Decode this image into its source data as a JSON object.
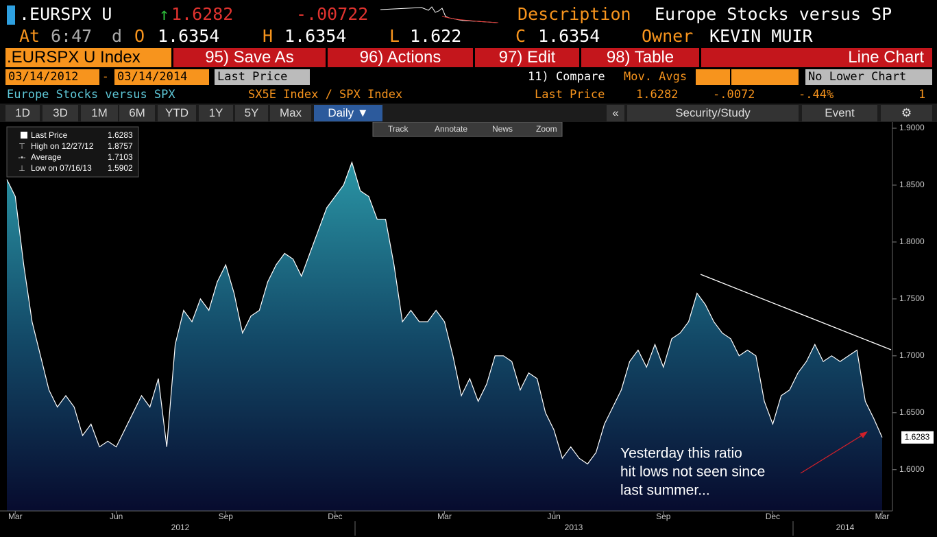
{
  "header": {
    "ticker": ".EURSPX U",
    "last": "1.6282",
    "change": "-.00722",
    "description_label": "Description",
    "description": "Europe Stocks versus SP",
    "at_label": "At",
    "time": "6:47",
    "d": "d",
    "open_label": "O",
    "open": "1.6354",
    "high_label": "H",
    "high": "1.6354",
    "low_label": "L",
    "low": "1.622",
    "close_label": "C",
    "close": "1.6354",
    "owner_label": "Owner",
    "owner": "KEVIN MUIR"
  },
  "menu": {
    "security": ".EURSPX U Index",
    "buttons": [
      "95) Save As",
      "96) Actions",
      "97) Edit",
      "98) Table"
    ],
    "chart_type": "Line Chart"
  },
  "settings": {
    "start_date": "03/14/2012",
    "separator": "-",
    "end_date": "03/14/2014",
    "field": "Last Price",
    "compare": "11) Compare",
    "mov_avgs": "Mov. Avgs",
    "lower_chart": "No Lower Chart"
  },
  "info": {
    "name": "Europe Stocks versus SPX",
    "formula": "SX5E Index / SPX Index",
    "field": "Last Price",
    "value": "1.6282",
    "change": "-.0072",
    "pct_change": "-.44%",
    "count": "1"
  },
  "tabs": {
    "periods": [
      "1D",
      "3D",
      "1M",
      "6M",
      "YTD",
      "1Y",
      "5Y",
      "Max"
    ],
    "frequency": "Daily ▼",
    "collapse": "«",
    "study": "Security/Study",
    "event": "Event"
  },
  "toolbar": [
    "Track",
    "Annotate",
    "News",
    "Zoom"
  ],
  "chart_data": {
    "type": "line",
    "categories": [
      null,
      "Mar",
      null,
      null,
      null,
      null,
      null,
      null,
      null,
      null,
      null,
      null,
      null,
      "Jun",
      null,
      null,
      null,
      null,
      null,
      null,
      null,
      null,
      null,
      null,
      null,
      null,
      "Sep",
      null,
      null,
      null,
      null,
      null,
      null,
      null,
      null,
      null,
      null,
      null,
      null,
      "Dec",
      null,
      null,
      null,
      null,
      null,
      null,
      null,
      null,
      null,
      null,
      null,
      null,
      "Mar",
      null,
      null,
      null,
      null,
      null,
      null,
      null,
      null,
      null,
      null,
      null,
      null,
      "Jun",
      null,
      null,
      null,
      null,
      null,
      null,
      null,
      null,
      null,
      null,
      null,
      null,
      "Sep",
      null,
      null,
      null,
      null,
      null,
      null,
      null,
      null,
      null,
      null,
      null,
      null,
      "Dec",
      null,
      null,
      null,
      null,
      null,
      null,
      null,
      null,
      null,
      null,
      null,
      null,
      "Mar"
    ],
    "x_groups": [
      "2012",
      "2013",
      "2014"
    ],
    "series": [
      {
        "name": "Last Price",
        "color": "#ffffff",
        "values": [
          1.855,
          1.84,
          1.78,
          1.73,
          1.7,
          1.67,
          1.655,
          1.665,
          1.655,
          1.63,
          1.64,
          1.62,
          1.625,
          1.62,
          1.635,
          1.65,
          1.665,
          1.655,
          1.68,
          1.62,
          1.71,
          1.74,
          1.73,
          1.75,
          1.74,
          1.765,
          1.78,
          1.755,
          1.72,
          1.735,
          1.74,
          1.765,
          1.78,
          1.79,
          1.785,
          1.77,
          1.79,
          1.81,
          1.83,
          1.84,
          1.85,
          1.87,
          1.845,
          1.84,
          1.82,
          1.82,
          1.78,
          1.73,
          1.74,
          1.73,
          1.73,
          1.74,
          1.73,
          1.7,
          1.665,
          1.68,
          1.66,
          1.675,
          1.7,
          1.7,
          1.695,
          1.67,
          1.685,
          1.68,
          1.65,
          1.635,
          1.61,
          1.62,
          1.61,
          1.605,
          1.615,
          1.64,
          1.655,
          1.67,
          1.695,
          1.705,
          1.69,
          1.71,
          1.69,
          1.715,
          1.72,
          1.73,
          1.755,
          1.745,
          1.73,
          1.72,
          1.715,
          1.7,
          1.705,
          1.7,
          1.66,
          1.64,
          1.665,
          1.67,
          1.685,
          1.695,
          1.71,
          1.695,
          1.7,
          1.695,
          1.7,
          1.705,
          1.66,
          1.645,
          1.6283
        ]
      }
    ],
    "stats": [
      {
        "label": "High on 12/27/12",
        "value": 1.8757
      },
      {
        "label": "Average",
        "value": 1.7103
      },
      {
        "label": "Low on 07/16/13",
        "value": 1.5902
      }
    ],
    "ylim": [
      1.5637,
      1.9042
    ],
    "yticks": [
      {
        "value": 1.6,
        "label": "1.6000"
      },
      {
        "value": 1.65,
        "label": "1.6500"
      },
      {
        "value": 1.7,
        "label": "1.7000"
      },
      {
        "value": 1.75,
        "label": "1.7500"
      },
      {
        "value": 1.8,
        "label": "1.8000"
      },
      {
        "value": 1.85,
        "label": "1.8500"
      },
      {
        "value": 1.9,
        "label": "1.9000"
      }
    ],
    "annotation": [
      "Yesterday this ratio",
      "hit lows not seen since",
      "last summer..."
    ]
  }
}
